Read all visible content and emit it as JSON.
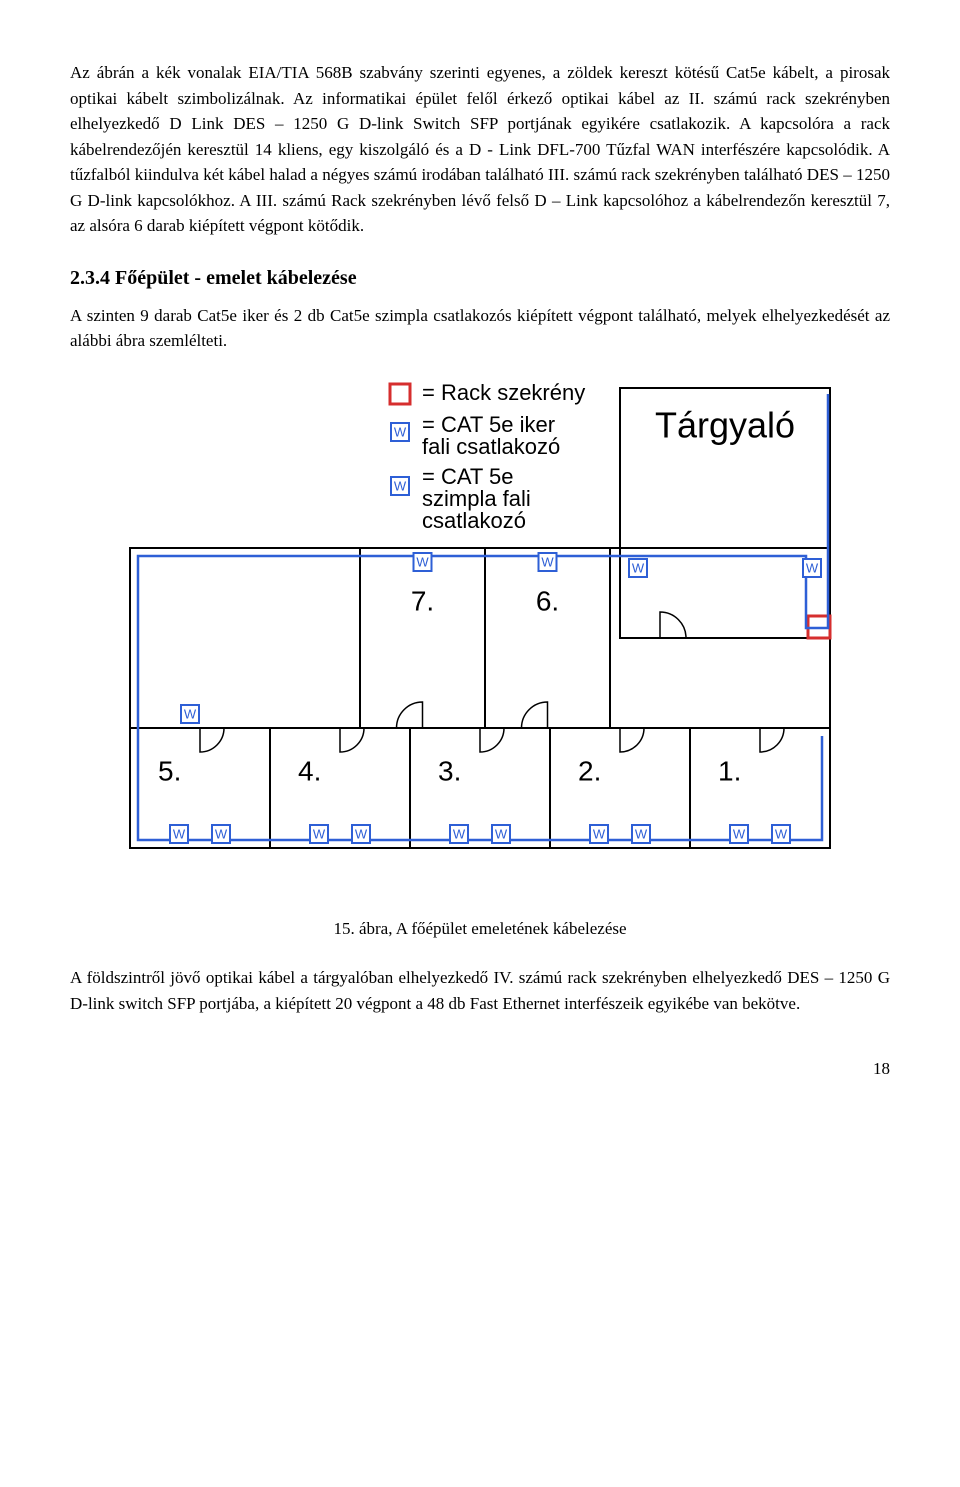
{
  "paragraph1": "Az ábrán a kék vonalak EIA/TIA 568B szabvány szerinti egyenes, a zöldek kereszt kötésű Cat5e kábelt, a pirosak optikai kábelt szimbolizálnak. Az informatikai épület felől érkező optikai kábel az II. számú rack szekrényben elhelyezkedő D Link DES – 1250 G D-link Switch SFP portjának egyikére csatlakozik. A kapcsolóra a rack kábelrendezőjén keresztül 14 kliens, egy kiszolgáló és a D - Link DFL-700 Tűzfal WAN interfészére kapcsolódik. A tűzfalból kiindulva két kábel halad a négyes számú irodában található III. számú rack szekrényben található DES – 1250 G D-link kapcsolókhoz. A III. számú Rack szekrényben lévő felső D – Link kapcsolóhoz a kábelrendezőn keresztül 7, az alsóra 6 darab kiépített végpont kötődik.",
  "section_heading": "2.3.4 Főépület - emelet kábelezése",
  "paragraph2": "A szinten 9 darab Cat5e iker és 2 db Cat5e szimpla csatlakozós kiépített végpont található, melyek elhelyezkedését az alábbi ábra szemlélteti.",
  "figure_caption": "15. ábra, A főépület emeletének kábelezése",
  "paragraph3": "A földszintről jövő optikai kábel a tárgyalóban elhelyezkedő IV. számú rack szekrényben elhelyezkedő DES – 1250 G D-link switch SFP portjába, a kiépített 20 végpont a 48 db Fast Ethernet interfészeik egyikébe van bekötve.",
  "page_number": "18",
  "diagram": {
    "type": "floor-plan",
    "background_color": "#ffffff",
    "wall_color": "#000000",
    "wall_width": 2,
    "cable_color": "#2e5fd6",
    "cable_width": 2.5,
    "rack_stroke": "#d62e2e",
    "socket_stroke": "#2e5fd6",
    "socket_fill": "#ffffff",
    "socket_letter": "W",
    "label_color": "#000000",
    "label_font_size": 22,
    "room_label_font_size": 36,
    "legend_font_size": 22,
    "legend": {
      "rack": "= Rack szekrény",
      "iker": "= CAT 5e iker fali csatlakozó",
      "szimpla": "= CAT 5e szimpla fali csatlakozó"
    },
    "room_label": "Tárgyaló",
    "rooms_lower": [
      "5.",
      "4.",
      "3.",
      "2.",
      "1."
    ],
    "rooms_mid": [
      "7.",
      "6."
    ]
  }
}
